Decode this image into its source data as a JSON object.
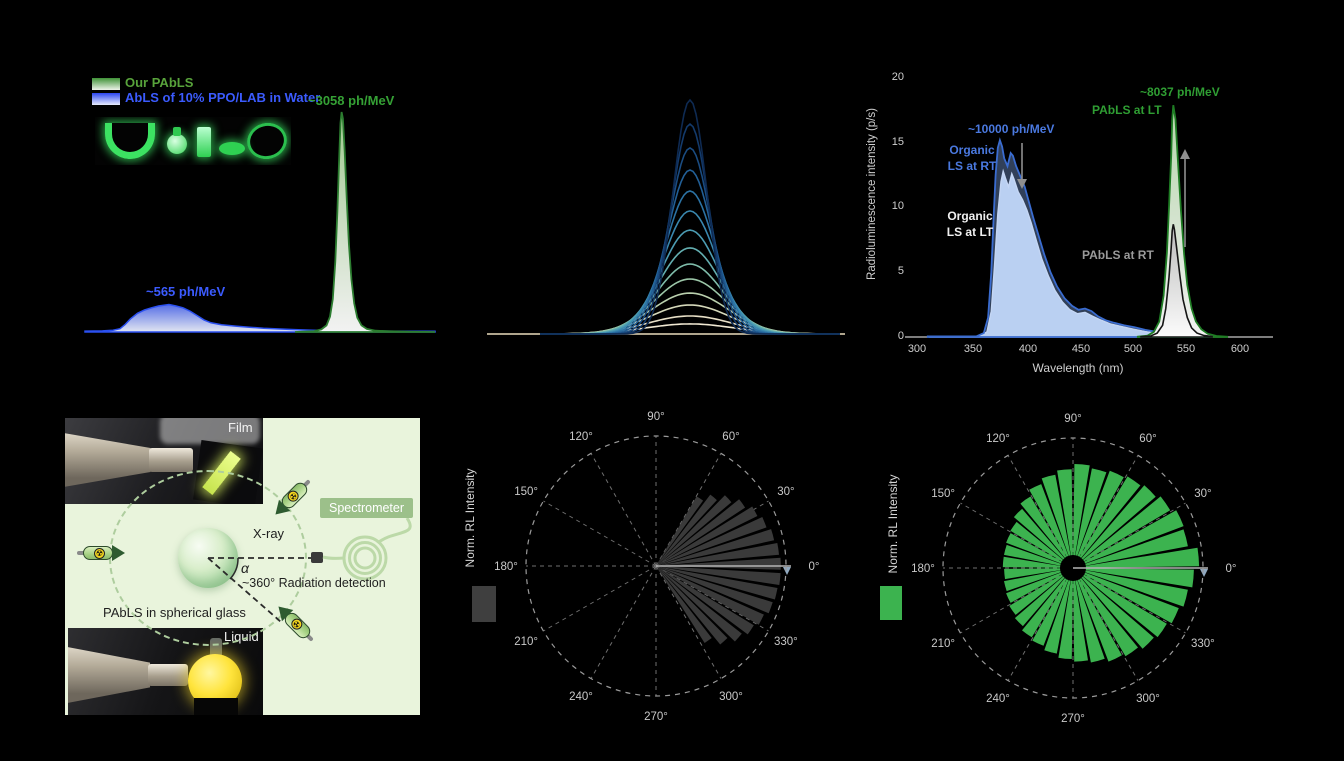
{
  "figure": {
    "background": "#000000"
  },
  "panel_a": {
    "legend": [
      {
        "label": "Our PAbLS",
        "text_color": "#58a33b",
        "swatch_top": "#3f9237",
        "swatch_bottom": "#eef4ea"
      },
      {
        "label": "AbLS of 10% PPO/LAB in Water",
        "text_color": "#3b5bfe",
        "swatch_top": "#2b45f0",
        "swatch_bottom": "#e8ecfc"
      }
    ],
    "annotations": [
      {
        "text": "~3058 ph/MeV",
        "color": "#35a135"
      },
      {
        "text": "~565 ph/MeV",
        "color": "#3b5bfe"
      }
    ]
  },
  "panel_c": {
    "ylabel": "Radioluminescence intensity (p/s)",
    "xlabel": "Wavelength (nm)",
    "yticks": [
      "20",
      "15",
      "10",
      "5",
      "0"
    ],
    "xticks": [
      "300",
      "350",
      "400",
      "450",
      "500",
      "550",
      "600"
    ],
    "annotations": {
      "rt_value": "~10000 ph/MeV",
      "organic_rt_line1": "Organic",
      "organic_rt_line2": "LS at RT",
      "organic_lt_line1": "Organic",
      "organic_lt_line2": "LS at LT",
      "pabls_lt": "PAbLS at LT",
      "lt_value": "~8037 ph/MeV",
      "pabls_rt": "PAbLS at RT"
    }
  },
  "panel_d": {
    "film_label": "Film",
    "liquid_label": "Liquid",
    "xray_label": "X-ray",
    "spectrometer_label": "Spectrometer",
    "alpha_label": "α",
    "detection_label": "~360° Radiation detection",
    "sphere_label": "PAbLS in spherical glass",
    "radiation_symbol": "☢"
  },
  "panel_e": {
    "ylabel": "Norm. RL Intensity",
    "bar_color": "#3a3a3a"
  },
  "panel_f": {
    "ylabel": "Norm. RL Intensity",
    "bar_color": "#3cb34f"
  },
  "polar_angle_labels": [
    "0°",
    "30°",
    "60°",
    "90°",
    "120°",
    "150°",
    "180°",
    "210°",
    "240°",
    "270°",
    "300°",
    "330°"
  ],
  "chart_data": [
    {
      "id": "a",
      "type": "area",
      "legend": [
        "Our PAbLS",
        "AbLS of 10% PPO/LAB in Water"
      ],
      "series": [
        {
          "name": "AbLS of 10% PPO/LAB in Water",
          "peak_label": "~565 ph/MeV",
          "line_color": "#2b50f0",
          "fill_type": "grad_blue_a",
          "points": [
            [
              0.0,
              0.004
            ],
            [
              0.05,
              0.005
            ],
            [
              0.08,
              0.008
            ],
            [
              0.1,
              0.015
            ],
            [
              0.115,
              0.035
            ],
            [
              0.13,
              0.06
            ],
            [
              0.15,
              0.085
            ],
            [
              0.17,
              0.1
            ],
            [
              0.19,
              0.11
            ],
            [
              0.21,
              0.118
            ],
            [
              0.24,
              0.125
            ],
            [
              0.26,
              0.118
            ],
            [
              0.28,
              0.11
            ],
            [
              0.3,
              0.095
            ],
            [
              0.32,
              0.075
            ],
            [
              0.34,
              0.055
            ],
            [
              0.36,
              0.042
            ],
            [
              0.39,
              0.033
            ],
            [
              0.43,
              0.027
            ],
            [
              0.47,
              0.022
            ],
            [
              0.51,
              0.017
            ],
            [
              0.55,
              0.014
            ],
            [
              0.6,
              0.011
            ],
            [
              0.65,
              0.008
            ],
            [
              0.7,
              0.006
            ],
            [
              0.76,
              0.005
            ],
            [
              0.83,
              0.004
            ],
            [
              0.92,
              0.003
            ],
            [
              1.0,
              0.003
            ]
          ]
        },
        {
          "name": "Our PAbLS",
          "peak_label": "~3058 ph/MeV",
          "line_color": "#2c7d30",
          "fill_type": "grad_green_a",
          "points": [
            [
              0.6,
              0.0
            ],
            [
              0.655,
              0.004
            ],
            [
              0.675,
              0.012
            ],
            [
              0.69,
              0.03
            ],
            [
              0.7,
              0.07
            ],
            [
              0.708,
              0.15
            ],
            [
              0.715,
              0.32
            ],
            [
              0.721,
              0.55
            ],
            [
              0.726,
              0.78
            ],
            [
              0.73,
              0.95
            ],
            [
              0.733,
              1.0
            ],
            [
              0.737,
              0.97
            ],
            [
              0.742,
              0.82
            ],
            [
              0.748,
              0.6
            ],
            [
              0.754,
              0.4
            ],
            [
              0.761,
              0.24
            ],
            [
              0.769,
              0.13
            ],
            [
              0.778,
              0.065
            ],
            [
              0.79,
              0.03
            ],
            [
              0.805,
              0.014
            ],
            [
              0.83,
              0.006
            ],
            [
              0.87,
              0.003
            ],
            [
              0.93,
              0.001
            ],
            [
              1.0,
              0.0
            ]
          ]
        }
      ]
    },
    {
      "id": "b",
      "type": "line",
      "curves": {
        "center": 0.547,
        "heights": [
          1.0,
          0.897,
          0.795,
          0.701,
          0.611,
          0.526,
          0.444,
          0.368,
          0.299,
          0.235,
          0.175,
          0.124,
          0.077,
          0.043
        ],
        "sigmas": [
          17,
          19,
          21,
          23,
          25,
          27,
          29,
          31,
          33,
          35.5,
          38,
          40,
          42,
          44
        ],
        "colors": [
          "#0e2a52",
          "#133a6b",
          "#1a4c82",
          "#225f96",
          "#2c73a5",
          "#3a88af",
          "#4c9cb3",
          "#63aeb0",
          "#7fbcaa",
          "#9cc7a8",
          "#bad0ae",
          "#d5d8ba",
          "#e7dfc6",
          "#f0e8d2"
        ],
        "baseline_color": "#e9dcbc"
      }
    },
    {
      "id": "c",
      "type": "area",
      "xlabel": "Wavelength (nm)",
      "ylabel": "Radioluminescence intensity (p/s)",
      "xticks": [
        300,
        350,
        400,
        450,
        500,
        550,
        600
      ],
      "yticks": [
        0,
        5,
        10,
        15,
        20
      ],
      "xlim": [
        290,
        640
      ],
      "ylim": [
        0,
        20
      ],
      "series": [
        {
          "name": "Organic LS at LT",
          "peak_value": 12.8,
          "peak_nm": 380,
          "line_color": "#eef3fb",
          "fill_type": "flat_blue",
          "points": [
            [
              312,
              0.02
            ],
            [
              358,
              0.05
            ],
            [
              365,
              0.4
            ],
            [
              369,
              2
            ],
            [
              372,
              5.5
            ],
            [
              375,
              9.5
            ],
            [
              378,
              12.0
            ],
            [
              380,
              12.8
            ],
            [
              382,
              12.3
            ],
            [
              385,
              11.6
            ],
            [
              388,
              12.6
            ],
            [
              390,
              12.2
            ],
            [
              394,
              11.2
            ],
            [
              398,
              10.6
            ],
            [
              402,
              9.8
            ],
            [
              406,
              8.8
            ],
            [
              411,
              7.4
            ],
            [
              416,
              6.0
            ],
            [
              422,
              4.7
            ],
            [
              428,
              3.6
            ],
            [
              435,
              2.7
            ],
            [
              442,
              2.1
            ],
            [
              449,
              1.8
            ],
            [
              456,
              1.9
            ],
            [
              463,
              1.6
            ],
            [
              471,
              1.3
            ],
            [
              480,
              1.0
            ],
            [
              490,
              0.8
            ],
            [
              501,
              0.6
            ],
            [
              512,
              0.42
            ],
            [
              524,
              0.28
            ],
            [
              537,
              0.15
            ],
            [
              552,
              0.06
            ],
            [
              568,
              0.02
            ]
          ]
        },
        {
          "name": "Organic LS at RT",
          "peak_value": 15.2,
          "peak_nm": 377,
          "peak_label": "~10000 ph/MeV",
          "line_color": "#3a6cd0",
          "fill_type": "rgba_blue",
          "points": [
            [
              310,
              0.05
            ],
            [
              355,
              0.05
            ],
            [
              362,
              0.3
            ],
            [
              366,
              1.5
            ],
            [
              369,
              5
            ],
            [
              371,
              9
            ],
            [
              373,
              12.5
            ],
            [
              375,
              14.6
            ],
            [
              377,
              15.2
            ],
            [
              379,
              14.7
            ],
            [
              381,
              13.8
            ],
            [
              384,
              13.2
            ],
            [
              387,
              14.2
            ],
            [
              389,
              14.0
            ],
            [
              392,
              13.2
            ],
            [
              396,
              12.4
            ],
            [
              400,
              11.6
            ],
            [
              404,
              10.4
            ],
            [
              408,
              9.2
            ],
            [
              413,
              7.8
            ],
            [
              418,
              6.4
            ],
            [
              424,
              5.0
            ],
            [
              430,
              3.9
            ],
            [
              437,
              3.0
            ],
            [
              444,
              2.4
            ],
            [
              450,
              2.1
            ],
            [
              456,
              2.2
            ],
            [
              462,
              2.0
            ],
            [
              468,
              1.6
            ],
            [
              475,
              1.3
            ],
            [
              483,
              1.1
            ],
            [
              492,
              0.9
            ],
            [
              502,
              0.75
            ],
            [
              512,
              0.55
            ],
            [
              522,
              0.4
            ],
            [
              532,
              0.25
            ],
            [
              543,
              0.12
            ],
            [
              555,
              0.05
            ],
            [
              570,
              0.02
            ]
          ]
        },
        {
          "name": "PAbLS at LT",
          "peak_value": 17.9,
          "peak_nm": 538,
          "peak_label": "~8037 ph/MeV",
          "line_color": "#1f7d24",
          "fill_type": "grad_green_c",
          "points": [
            [
              505,
              0.02
            ],
            [
              514,
              0.1
            ],
            [
              520,
              0.4
            ],
            [
              525,
              1.2
            ],
            [
              529,
              3.2
            ],
            [
              532,
              6.5
            ],
            [
              534,
              10
            ],
            [
              536,
              14
            ],
            [
              537,
              16.8
            ],
            [
              538,
              17.9
            ],
            [
              540,
              16.8
            ],
            [
              542,
              14
            ],
            [
              545,
              9.8
            ],
            [
              548,
              6.4
            ],
            [
              551,
              4.0
            ],
            [
              555,
              2.2
            ],
            [
              559,
              1.2
            ],
            [
              564,
              0.6
            ],
            [
              570,
              0.25
            ],
            [
              578,
              0.08
            ],
            [
              588,
              0.02
            ]
          ]
        },
        {
          "name": "PAbLS at RT",
          "peak_value": 8.7,
          "peak_nm": 538,
          "line_color": "#151515",
          "fill_type": "grad_gray_c",
          "points": [
            [
              508,
              0.02
            ],
            [
              517,
              0.08
            ],
            [
              523,
              0.3
            ],
            [
              528,
              0.9
            ],
            [
              531,
              2.2
            ],
            [
              534,
              4.6
            ],
            [
              536,
              6.9
            ],
            [
              537,
              8.2
            ],
            [
              538,
              8.7
            ],
            [
              539,
              8.3
            ],
            [
              541,
              6.9
            ],
            [
              544,
              4.8
            ],
            [
              547,
              2.9
            ],
            [
              551,
              1.5
            ],
            [
              555,
              0.7
            ],
            [
              560,
              0.3
            ],
            [
              566,
              0.12
            ],
            [
              574,
              0.04
            ]
          ]
        }
      ]
    },
    {
      "id": "e",
      "type": "polar_bar",
      "ylabel": "Norm. RL Intensity",
      "bar_color": "#3a3a3a",
      "bar_width_deg": 5.5,
      "inner_radius_frac": 0.02,
      "angle_labels_deg": [
        0,
        30,
        60,
        90,
        120,
        150,
        180,
        210,
        240,
        270,
        300,
        330
      ],
      "bars": [
        [
          57,
          0.62
        ],
        [
          50,
          0.69
        ],
        [
          43,
          0.76
        ],
        [
          36,
          0.82
        ],
        [
          29,
          0.87
        ],
        [
          22,
          0.9
        ],
        [
          15,
          0.93
        ],
        [
          8,
          0.95
        ],
        [
          1,
          0.96
        ],
        [
          -6,
          0.96
        ],
        [
          -13,
          0.95
        ],
        [
          -20,
          0.94
        ],
        [
          -27,
          0.91
        ],
        [
          -34,
          0.88
        ],
        [
          -41,
          0.84
        ],
        [
          -48,
          0.78
        ],
        [
          -55,
          0.7
        ]
      ]
    },
    {
      "id": "f",
      "type": "polar_bar",
      "ylabel": "Norm. RL Intensity",
      "bar_color": "#3cb34f",
      "bar_width_deg": 8.5,
      "inner_radius_frac": 0.1,
      "angle_labels_deg": [
        0,
        30,
        60,
        90,
        120,
        150,
        180,
        210,
        240,
        270,
        300,
        330
      ],
      "bars": [
        [
          5,
          0.97
        ],
        [
          15,
          0.9
        ],
        [
          25,
          0.91
        ],
        [
          35,
          0.87
        ],
        [
          45,
          0.84
        ],
        [
          55,
          0.82
        ],
        [
          65,
          0.8
        ],
        [
          75,
          0.78
        ],
        [
          85,
          0.8
        ],
        [
          95,
          0.76
        ],
        [
          105,
          0.73
        ],
        [
          115,
          0.69
        ],
        [
          125,
          0.64
        ],
        [
          135,
          0.6
        ],
        [
          145,
          0.56
        ],
        [
          155,
          0.55
        ],
        [
          165,
          0.54
        ],
        [
          175,
          0.54
        ],
        [
          185,
          0.53
        ],
        [
          195,
          0.54
        ],
        [
          205,
          0.55
        ],
        [
          215,
          0.57
        ],
        [
          225,
          0.59
        ],
        [
          235,
          0.62
        ],
        [
          245,
          0.64
        ],
        [
          255,
          0.67
        ],
        [
          265,
          0.7
        ],
        [
          275,
          0.72
        ],
        [
          285,
          0.74
        ],
        [
          295,
          0.77
        ],
        [
          305,
          0.79
        ],
        [
          315,
          0.82
        ],
        [
          325,
          0.84
        ],
        [
          335,
          0.87
        ],
        [
          345,
          0.9
        ],
        [
          355,
          0.93
        ]
      ]
    }
  ]
}
